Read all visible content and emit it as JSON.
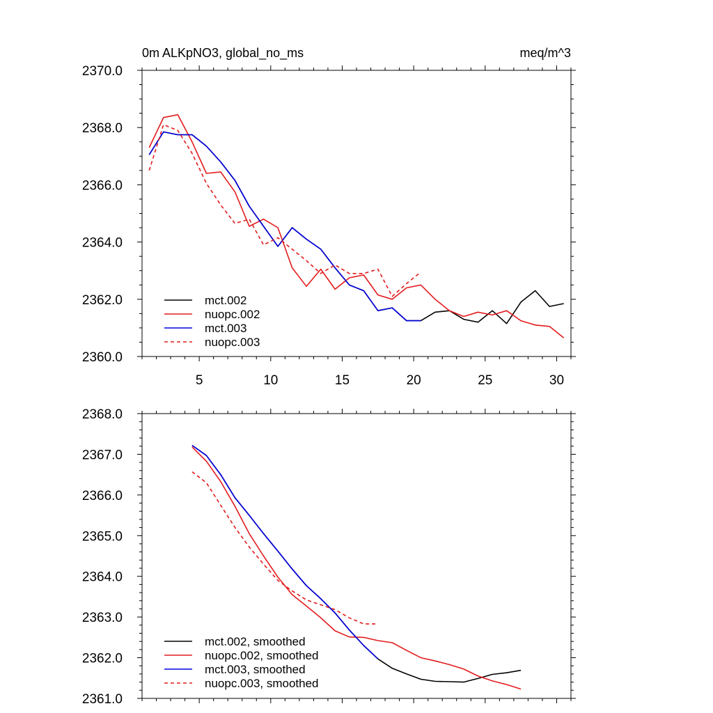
{
  "colors": {
    "mct002": "#000000",
    "nuopc002": "#e31a1c",
    "mct003": "#0000e0",
    "nuopc003": "#e31a1c"
  },
  "chart_data": [
    {
      "type": "line",
      "title": "0m ALKpNO3, global_no_ms",
      "units": "meq/m^3",
      "xlim": [
        1,
        31
      ],
      "ylim": [
        2360,
        2370
      ],
      "xticks": [
        5,
        10,
        15,
        20,
        25,
        30
      ],
      "xtick_labels": [
        "5",
        "10",
        "15",
        "20",
        "25",
        "30"
      ],
      "yticks": [
        2360,
        2362,
        2364,
        2366,
        2368,
        2370
      ],
      "ytick_labels": [
        "2360.0",
        "2362.0",
        "2364.0",
        "2366.0",
        "2368.0",
        "2370.0"
      ],
      "grid": false,
      "legend": "bottom-left",
      "series": [
        {
          "name": "mct.002",
          "color": "#000000",
          "dash": "solid",
          "x": [
            1.5,
            2.5,
            3.5,
            4.5,
            5.5,
            6.5,
            7.5,
            8.5,
            9.5,
            10.5,
            11.5,
            12.5,
            13.5,
            14.5,
            15.5,
            16.5,
            17.5,
            18.5,
            19.5,
            20.5,
            21.5,
            22.5,
            23.5,
            24.5,
            25.5,
            26.5,
            27.5,
            28.5,
            29.5,
            30.5
          ],
          "y": [
            2367.05,
            2367.85,
            2367.75,
            2367.75,
            2367.35,
            2366.8,
            2366.15,
            2365.25,
            2364.55,
            2363.85,
            2364.5,
            2364.1,
            2363.75,
            2363.1,
            2362.5,
            2362.3,
            2361.6,
            2361.7,
            2361.25,
            2361.25,
            2361.55,
            2361.6,
            2361.3,
            2361.2,
            2361.6,
            2361.15,
            2361.9,
            2362.3,
            2361.75,
            2361.85
          ]
        },
        {
          "name": "nuopc.002",
          "color": "#e31a1c",
          "dash": "solid",
          "x": [
            1.5,
            2.5,
            3.5,
            4.5,
            5.5,
            6.5,
            7.5,
            8.5,
            9.5,
            10.5,
            11.5,
            12.5,
            13.5,
            14.5,
            15.5,
            16.5,
            17.5,
            18.5,
            19.5,
            20.5,
            21.5,
            22.5,
            23.5,
            24.5,
            25.5,
            26.5,
            27.5,
            28.5,
            29.5,
            30.5
          ],
          "y": [
            2367.3,
            2368.35,
            2368.45,
            2367.5,
            2366.4,
            2366.45,
            2365.75,
            2364.55,
            2364.8,
            2364.5,
            2363.1,
            2362.45,
            2363.05,
            2362.35,
            2362.75,
            2362.85,
            2362.15,
            2362.0,
            2362.4,
            2362.5,
            2362.0,
            2361.6,
            2361.4,
            2361.55,
            2361.45,
            2361.6,
            2361.25,
            2361.1,
            2361.05,
            2360.65
          ]
        },
        {
          "name": "mct.003",
          "color": "#0000e0",
          "dash": "solid",
          "x": [
            1.5,
            2.5,
            3.5,
            4.5,
            5.5,
            6.5,
            7.5,
            8.5,
            9.5,
            10.5,
            11.5,
            12.5,
            13.5,
            14.5,
            15.5,
            16.5,
            17.5,
            18.5,
            19.5,
            20.5
          ],
          "y": [
            2367.05,
            2367.85,
            2367.75,
            2367.75,
            2367.35,
            2366.8,
            2366.15,
            2365.25,
            2364.55,
            2363.85,
            2364.5,
            2364.1,
            2363.75,
            2363.1,
            2362.5,
            2362.3,
            2361.6,
            2361.7,
            2361.25,
            2361.25
          ]
        },
        {
          "name": "nuopc.003",
          "color": "#e31a1c",
          "dash": "dashed",
          "x": [
            1.5,
            2.5,
            3.5,
            4.5,
            5.5,
            6.5,
            7.5,
            8.5,
            9.5,
            10.5,
            11.5,
            12.5,
            13.5,
            14.5,
            15.5,
            16.5,
            17.5,
            18.5,
            19.5,
            20.5
          ],
          "y": [
            2366.5,
            2368.1,
            2367.9,
            2367.1,
            2366.05,
            2365.3,
            2364.65,
            2364.8,
            2363.9,
            2364.15,
            2363.75,
            2363.35,
            2362.9,
            2363.2,
            2362.9,
            2362.9,
            2363.05,
            2362.1,
            2362.55,
            2362.95
          ]
        }
      ]
    },
    {
      "type": "line",
      "xlim": [
        1,
        31
      ],
      "ylim": [
        2361,
        2368
      ],
      "xticks": [
        5,
        10,
        15,
        20,
        25,
        30
      ],
      "yticks": [
        2361,
        2362,
        2363,
        2364,
        2365,
        2366,
        2367,
        2368
      ],
      "ytick_labels": [
        "2361.0",
        "2362.0",
        "2363.0",
        "2364.0",
        "2365.0",
        "2366.0",
        "2367.0",
        "2368.0"
      ],
      "grid": false,
      "legend": "bottom-left",
      "series": [
        {
          "name": "mct.002, smoothed",
          "color": "#000000",
          "dash": "solid",
          "x": [
            4.5,
            5.5,
            6.5,
            7.5,
            8.5,
            9.5,
            10.5,
            11.5,
            12.5,
            13.5,
            14.5,
            15.5,
            16.5,
            17.5,
            18.5,
            19.5,
            20.5,
            21.5,
            22.5,
            23.5,
            24.5,
            25.5,
            26.5,
            27.5
          ],
          "y": [
            2367.22,
            2366.97,
            2366.5,
            2365.93,
            2365.5,
            2365.05,
            2364.62,
            2364.18,
            2363.77,
            2363.45,
            2363.1,
            2362.68,
            2362.3,
            2361.97,
            2361.74,
            2361.6,
            2361.47,
            2361.42,
            2361.41,
            2361.4,
            2361.49,
            2361.59,
            2361.63,
            2361.69
          ]
        },
        {
          "name": "nuopc.002, smoothed",
          "color": "#e31a1c",
          "dash": "solid",
          "x": [
            4.5,
            5.5,
            6.5,
            7.5,
            8.5,
            9.5,
            10.5,
            11.5,
            12.5,
            13.5,
            14.5,
            15.5,
            16.5,
            17.5,
            18.5,
            19.5,
            20.5,
            21.5,
            22.5,
            23.5,
            24.5,
            25.5,
            26.5,
            27.5
          ],
          "y": [
            2367.18,
            2366.83,
            2366.33,
            2365.72,
            2365.05,
            2364.5,
            2363.98,
            2363.55,
            2363.27,
            2362.98,
            2362.66,
            2362.51,
            2362.5,
            2362.42,
            2362.37,
            2362.18,
            2362.0,
            2361.92,
            2361.83,
            2361.72,
            2361.55,
            2361.43,
            2361.34,
            2361.23
          ]
        },
        {
          "name": "mct.003, smoothed",
          "color": "#0000e0",
          "dash": "solid",
          "x": [
            4.5,
            5.5,
            6.5,
            7.5,
            8.5,
            9.5,
            10.5,
            11.5,
            12.5,
            13.5,
            14.5,
            15.5,
            16.5,
            17.5
          ],
          "y": [
            2367.22,
            2366.97,
            2366.5,
            2365.93,
            2365.5,
            2365.05,
            2364.62,
            2364.18,
            2363.77,
            2363.45,
            2363.1,
            2362.68,
            2362.3,
            2361.97
          ]
        },
        {
          "name": "nuopc.003, smoothed",
          "color": "#e31a1c",
          "dash": "dashed",
          "x": [
            4.5,
            5.5,
            6.5,
            7.5,
            8.5,
            9.5,
            10.5,
            11.5,
            12.5,
            13.5,
            14.5,
            15.5,
            16.5,
            17.5
          ],
          "y": [
            2366.57,
            2366.3,
            2365.75,
            2365.2,
            2364.72,
            2364.3,
            2363.9,
            2363.64,
            2363.42,
            2363.3,
            2363.18,
            2362.98,
            2362.83,
            2362.83
          ]
        }
      ]
    }
  ]
}
